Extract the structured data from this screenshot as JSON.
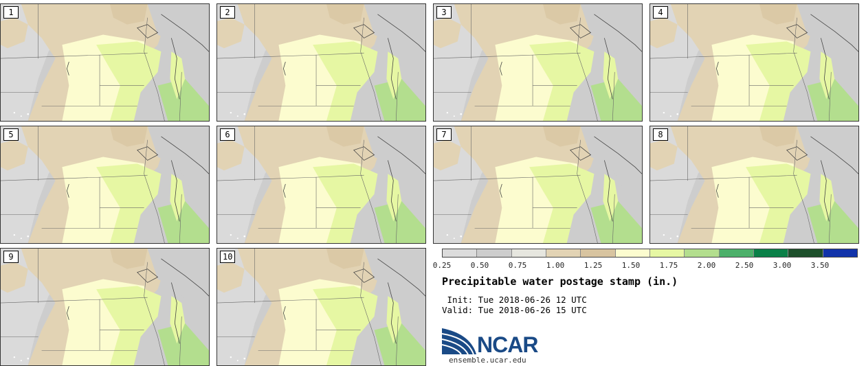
{
  "panels": [
    {
      "label": "1"
    },
    {
      "label": "2"
    },
    {
      "label": "3"
    },
    {
      "label": "4"
    },
    {
      "label": "5"
    },
    {
      "label": "6"
    },
    {
      "label": "7"
    },
    {
      "label": "8"
    },
    {
      "label": "9"
    },
    {
      "label": "10"
    }
  ],
  "colorbar": {
    "ticks": [
      "0.25",
      "0.50",
      "0.75",
      "1.00",
      "1.25",
      "1.50",
      "1.75",
      "2.00",
      "2.50",
      "3.00",
      "3.50"
    ],
    "colors": [
      "#dcdcdc",
      "#cdcdcd",
      "#e6e6df",
      "#e2d3b4",
      "#d8c4a0",
      "#fcfccf",
      "#e6f7a3",
      "#b3de8e",
      "#4cb06a",
      "#0a8048",
      "#1d4f2b",
      "#1133aa"
    ]
  },
  "title": "Precipitable water postage stamp (in.)",
  "init": " Init: Tue 2018-06-26 12 UTC",
  "valid": "Valid: Tue 2018-06-26 15 UTC",
  "logo": {
    "name": "NCAR",
    "url": "ensemble.ucar.edu",
    "color": "#1a4a86"
  }
}
